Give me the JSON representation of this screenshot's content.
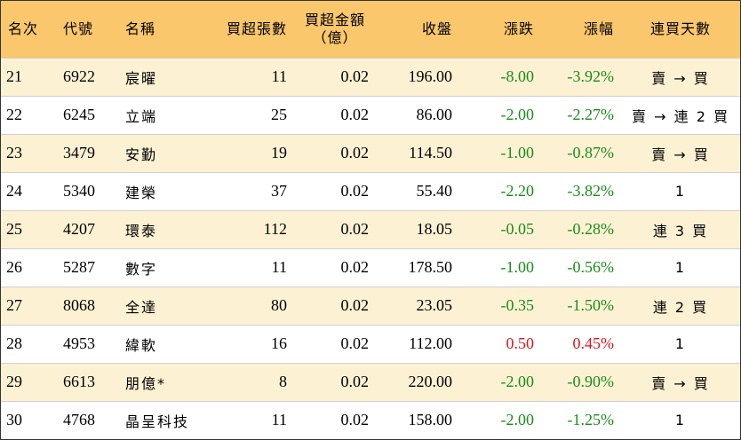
{
  "headers": {
    "rank": "名次",
    "code": "代號",
    "name": "名稱",
    "net_lots": "買超張數",
    "amount_line1": "買超金額",
    "amount_line2": "（億）",
    "close": "收盤",
    "change": "漲跌",
    "change_pct": "漲幅",
    "streak": "連買天數"
  },
  "colors": {
    "header_bg": "#fac76c",
    "stripe_bg": "#fdf1d3",
    "down": "#1a8c1a",
    "up": "#e0141e"
  },
  "rows": [
    {
      "rank": "21",
      "code": "6922",
      "name": "宸曜",
      "net_lots": "11",
      "amount": "0.02",
      "close": "196.00",
      "change": "-8.00",
      "change_pct": "-3.92%",
      "streak": "賣 → 買",
      "trend": "down"
    },
    {
      "rank": "22",
      "code": "6245",
      "name": "立端",
      "net_lots": "25",
      "amount": "0.02",
      "close": "86.00",
      "change": "-2.00",
      "change_pct": "-2.27%",
      "streak": "賣 → 連 2 買",
      "trend": "down"
    },
    {
      "rank": "23",
      "code": "3479",
      "name": "安勤",
      "net_lots": "19",
      "amount": "0.02",
      "close": "114.50",
      "change": "-1.00",
      "change_pct": "-0.87%",
      "streak": "賣 → 買",
      "trend": "down"
    },
    {
      "rank": "24",
      "code": "5340",
      "name": "建榮",
      "net_lots": "37",
      "amount": "0.02",
      "close": "55.40",
      "change": "-2.20",
      "change_pct": "-3.82%",
      "streak": "1",
      "trend": "down"
    },
    {
      "rank": "25",
      "code": "4207",
      "name": "環泰",
      "net_lots": "112",
      "amount": "0.02",
      "close": "18.05",
      "change": "-0.05",
      "change_pct": "-0.28%",
      "streak": "連 3 買",
      "trend": "down"
    },
    {
      "rank": "26",
      "code": "5287",
      "name": "數字",
      "net_lots": "11",
      "amount": "0.02",
      "close": "178.50",
      "change": "-1.00",
      "change_pct": "-0.56%",
      "streak": "1",
      "trend": "down"
    },
    {
      "rank": "27",
      "code": "8068",
      "name": "全達",
      "net_lots": "80",
      "amount": "0.02",
      "close": "23.05",
      "change": "-0.35",
      "change_pct": "-1.50%",
      "streak": "連 2 買",
      "trend": "down"
    },
    {
      "rank": "28",
      "code": "4953",
      "name": "緯軟",
      "net_lots": "16",
      "amount": "0.02",
      "close": "112.00",
      "change": "0.50",
      "change_pct": "0.45%",
      "streak": "1",
      "trend": "up"
    },
    {
      "rank": "29",
      "code": "6613",
      "name": "朋億*",
      "net_lots": "8",
      "amount": "0.02",
      "close": "220.00",
      "change": "-2.00",
      "change_pct": "-0.90%",
      "streak": "賣 → 買",
      "trend": "down"
    },
    {
      "rank": "30",
      "code": "4768",
      "name": "晶呈科技",
      "net_lots": "11",
      "amount": "0.02",
      "close": "158.00",
      "change": "-2.00",
      "change_pct": "-1.25%",
      "streak": "1",
      "trend": "down"
    }
  ]
}
